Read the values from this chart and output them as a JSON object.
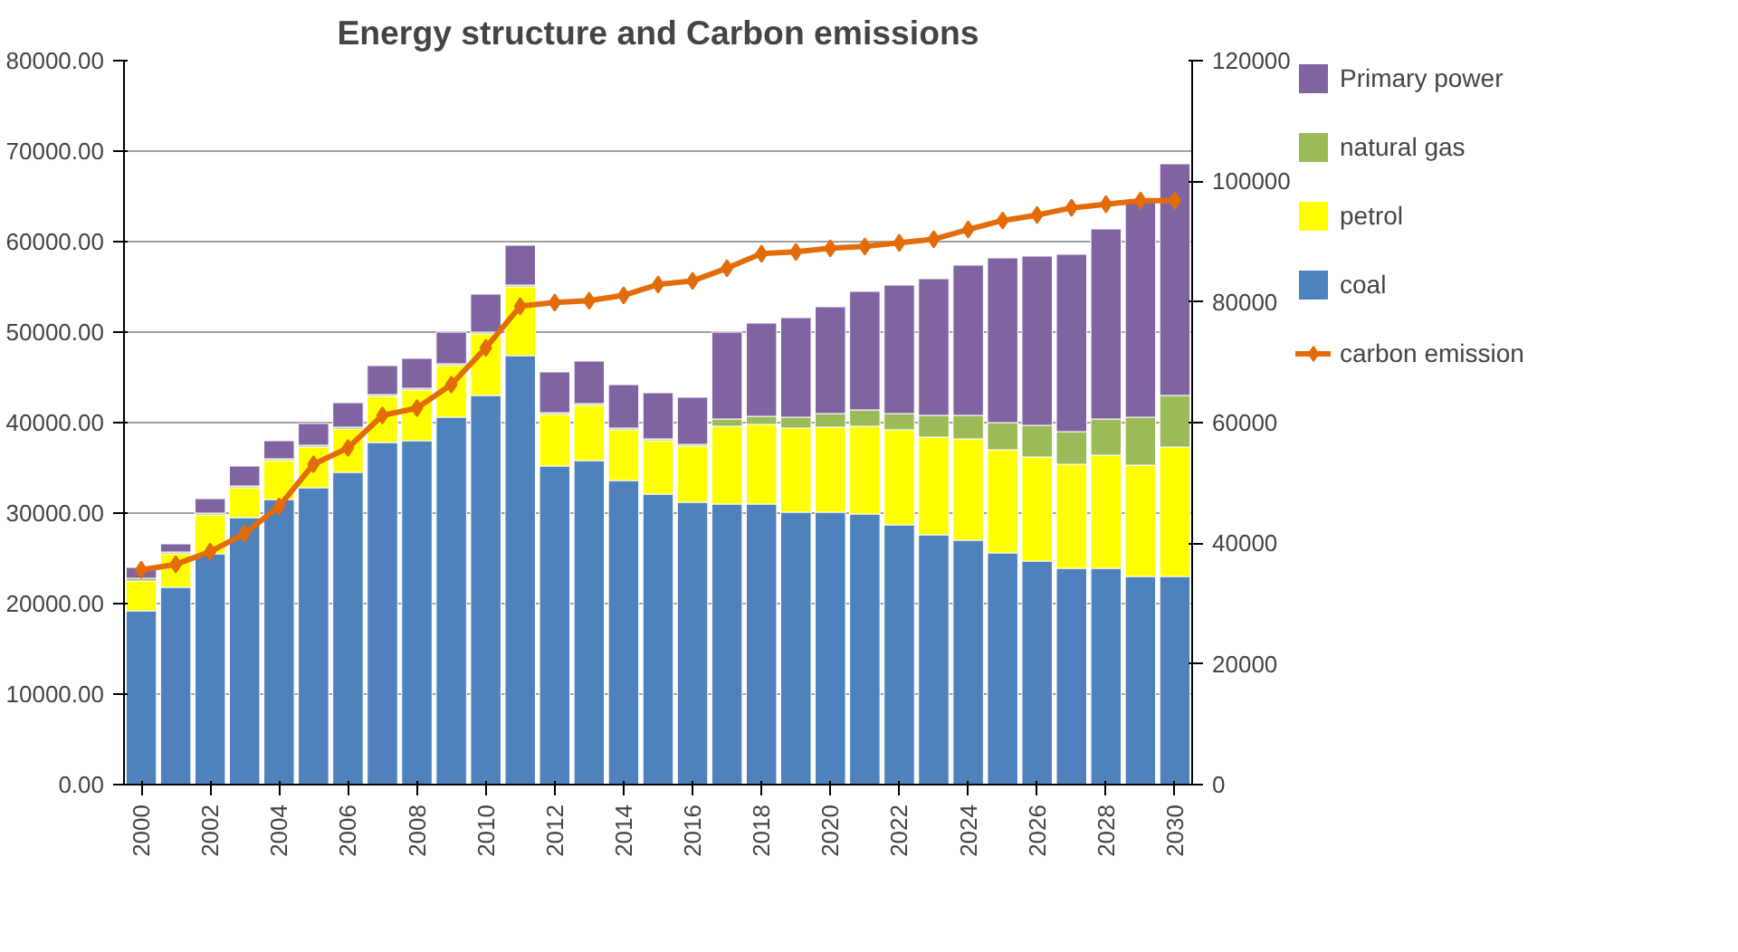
{
  "chart_data": {
    "type": "bar",
    "title": "Energy structure and Carbon emissions",
    "stacked": true,
    "categories": [
      "2000",
      null,
      "2002",
      null,
      "2004",
      null,
      "2006",
      null,
      "2008",
      null,
      "2010",
      null,
      "2012",
      null,
      "2014",
      null,
      "2016",
      null,
      "2018",
      null,
      "2020",
      null,
      "2022",
      null,
      "2024",
      null,
      "2026",
      null,
      "2028",
      null,
      "2030"
    ],
    "series": [
      {
        "name": "coal",
        "color": "#4f81bd",
        "values": [
          19200,
          21800,
          25500,
          29500,
          31500,
          32800,
          34500,
          37800,
          38000,
          40600,
          43000,
          47400,
          35200,
          35800,
          33600,
          32100,
          31200,
          31000,
          31000,
          30100,
          30100,
          29900,
          28700,
          27600,
          27000,
          25600,
          24700,
          23900,
          23900,
          23000,
          23000
        ]
      },
      {
        "name": "petrol",
        "color": "#ffff00",
        "values": [
          3300,
          3700,
          4300,
          3300,
          4300,
          4500,
          4800,
          5100,
          5600,
          5700,
          6800,
          7600,
          5700,
          6100,
          5600,
          5900,
          6200,
          8600,
          8800,
          9300,
          9400,
          9700,
          10500,
          10800,
          11200,
          11400,
          11500,
          11500,
          12500,
          12300,
          14300
        ]
      },
      {
        "name": "natural gas",
        "color": "#9bbb59",
        "values": [
          300,
          200,
          200,
          200,
          200,
          200,
          200,
          200,
          200,
          200,
          200,
          200,
          200,
          200,
          200,
          200,
          200,
          800,
          900,
          1200,
          1500,
          1800,
          1800,
          2400,
          2600,
          3000,
          3500,
          3600,
          4000,
          5300,
          5700
        ]
      },
      {
        "name": "Primary power",
        "color": "#8064a2",
        "values": [
          1200,
          900,
          1600,
          2200,
          2000,
          2400,
          2700,
          3200,
          3300,
          3500,
          4200,
          4400,
          4500,
          4700,
          4800,
          5100,
          5200,
          9600,
          10300,
          11000,
          11800,
          13100,
          14200,
          15100,
          16600,
          18200,
          18700,
          19600,
          21000,
          24000,
          25600
        ]
      },
      {
        "name": "carbon emission",
        "type": "line",
        "axis": "y2",
        "marker": "diamond",
        "color": "#e36c09",
        "values": [
          35600,
          36500,
          38600,
          41600,
          46100,
          53100,
          55800,
          61200,
          62400,
          66300,
          72400,
          79300,
          79900,
          80200,
          81100,
          82900,
          83500,
          85600,
          88000,
          88300,
          88900,
          89200,
          89800,
          90400,
          92000,
          93500,
          94400,
          95600,
          96200,
          96800,
          96800
        ]
      }
    ],
    "ylim": [
      0,
      80000
    ],
    "yticks": [
      {
        "value": 0,
        "label": "0.00"
      },
      {
        "value": 10000,
        "label": "10000.00"
      },
      {
        "value": 20000,
        "label": "20000.00"
      },
      {
        "value": 30000,
        "label": "30000.00"
      },
      {
        "value": 40000,
        "label": "40000.00"
      },
      {
        "value": 50000,
        "label": "50000.00"
      },
      {
        "value": 60000,
        "label": "60000.00"
      },
      {
        "value": 70000,
        "label": "70000.00"
      },
      {
        "value": 80000,
        "label": "80000.00"
      }
    ],
    "y2lim": [
      0,
      120000
    ],
    "y2ticks": [
      0,
      20000,
      40000,
      60000,
      80000,
      100000,
      120000
    ],
    "grid": "y",
    "legend": "right"
  }
}
